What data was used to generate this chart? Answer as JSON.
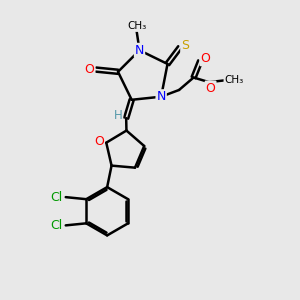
{
  "bg_color": "#e8e8e8",
  "bond_color": "#000000",
  "bond_width": 1.8,
  "figsize": [
    3.0,
    3.0
  ],
  "dpi": 100,
  "xlim": [
    0,
    10
  ],
  "ylim": [
    0,
    10
  ]
}
